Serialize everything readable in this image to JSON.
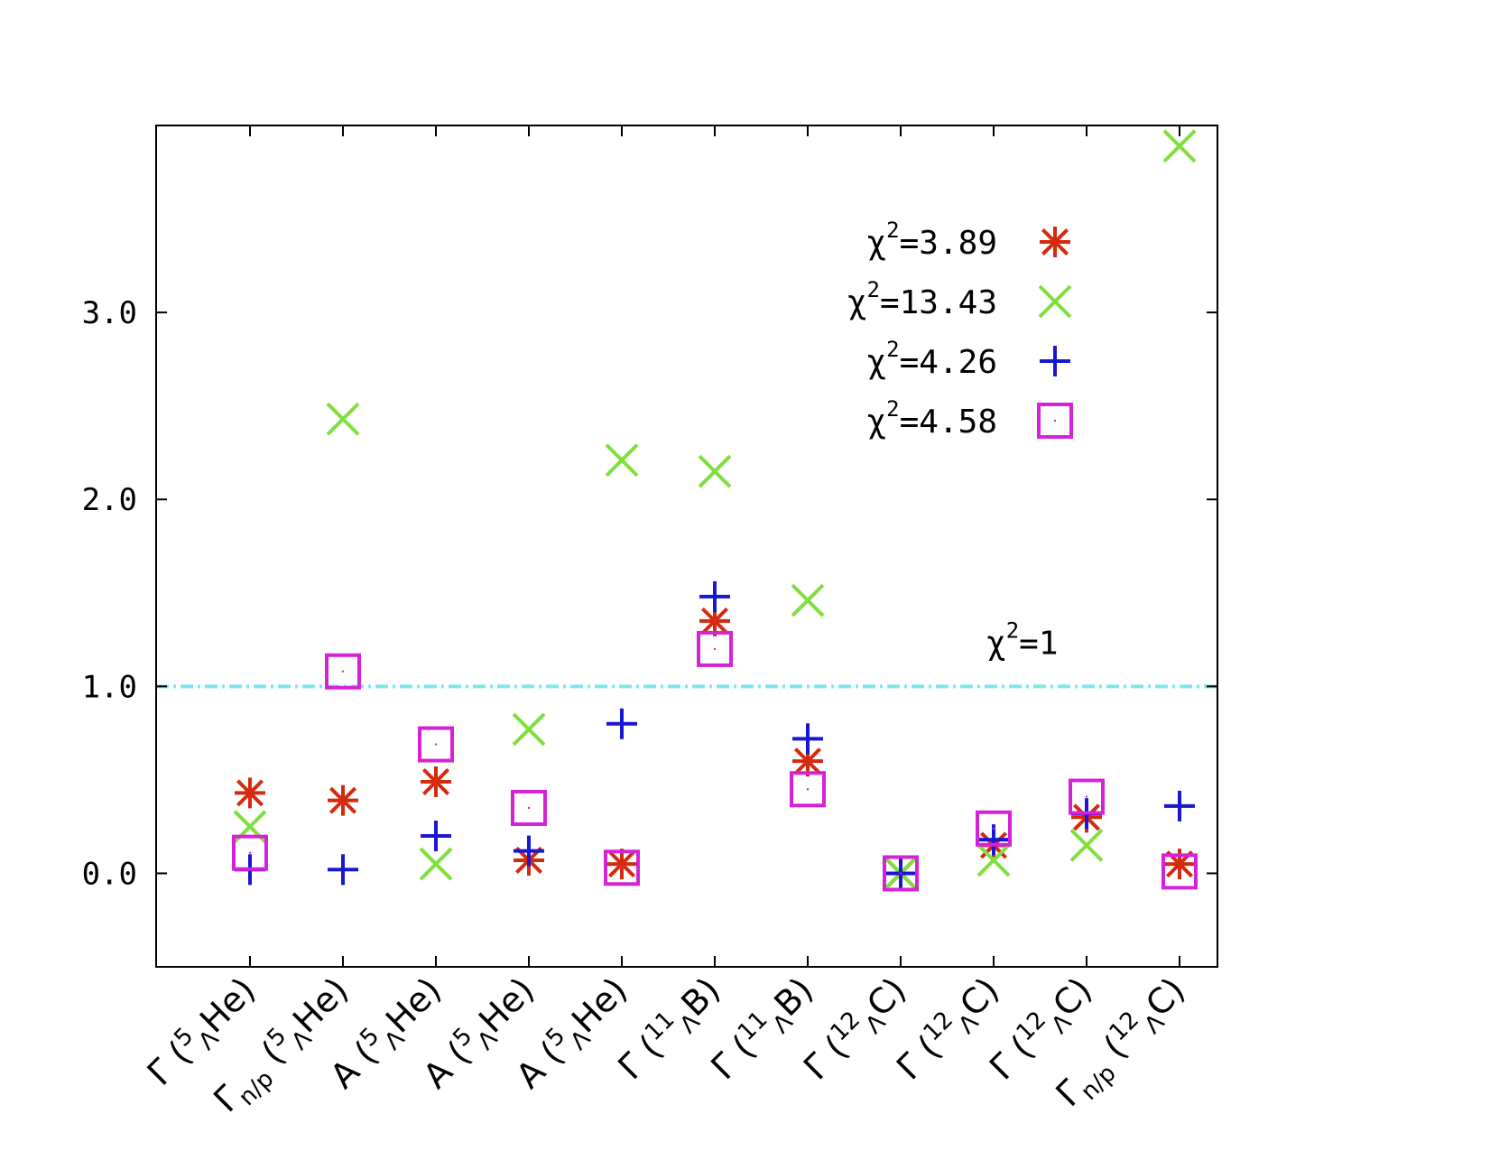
{
  "chart_data": {
    "type": "scatter",
    "title": "",
    "xlabel": "",
    "ylabel": "",
    "ylim": [
      -0.5,
      4.0
    ],
    "yticks": [
      "0.0",
      "1.0",
      "2.0",
      "3.0"
    ],
    "ytick_values": [
      0.0,
      1.0,
      2.0,
      3.0
    ],
    "grid": false,
    "legend_position": "top-right",
    "categories": [
      {
        "symbol": "Γ",
        "sub": "",
        "mass": "5",
        "lambda": "Λ",
        "nucleus": "He"
      },
      {
        "symbol": "Γ",
        "sub": "n/p",
        "mass": "5",
        "lambda": "Λ",
        "nucleus": "He"
      },
      {
        "symbol": "A",
        "sub": "",
        "mass": "5",
        "lambda": "Λ",
        "nucleus": "He"
      },
      {
        "symbol": "A",
        "sub": "",
        "mass": "5",
        "lambda": "Λ",
        "nucleus": "He"
      },
      {
        "symbol": "A",
        "sub": "",
        "mass": "5",
        "lambda": "Λ",
        "nucleus": "He"
      },
      {
        "symbol": "Γ",
        "sub": "",
        "mass": "11",
        "lambda": "Λ",
        "nucleus": "B"
      },
      {
        "symbol": "Γ",
        "sub": "",
        "mass": "11",
        "lambda": "Λ",
        "nucleus": "B"
      },
      {
        "symbol": "Γ",
        "sub": "",
        "mass": "12",
        "lambda": "Λ",
        "nucleus": "C"
      },
      {
        "symbol": "Γ",
        "sub": "",
        "mass": "12",
        "lambda": "Λ",
        "nucleus": "C"
      },
      {
        "symbol": "Γ",
        "sub": "",
        "mass": "12",
        "lambda": "Λ",
        "nucleus": "C"
      },
      {
        "symbol": "Γ",
        "sub": "n/p",
        "mass": "12",
        "lambda": "Λ",
        "nucleus": "C"
      }
    ],
    "series": [
      {
        "name": "χ²=3.89",
        "chi": "χ",
        "sup": "2",
        "value_text": "=3.89",
        "marker": "asterisk",
        "color": "#d42a0e",
        "values": [
          0.43,
          0.39,
          0.49,
          0.07,
          0.05,
          1.35,
          0.6,
          0.0,
          0.15,
          0.3,
          0.05
        ]
      },
      {
        "name": "χ²=13.43",
        "chi": "χ",
        "sup": "2",
        "value_text": "=13.43",
        "marker": "x",
        "color": "#7fe03c",
        "values": [
          0.25,
          2.43,
          0.05,
          0.77,
          2.21,
          2.15,
          1.46,
          0.0,
          0.07,
          0.15,
          3.89
        ]
      },
      {
        "name": "χ²=4.26",
        "chi": "χ",
        "sup": "2",
        "value_text": "=4.26",
        "marker": "plus",
        "color": "#1717d4",
        "values": [
          0.02,
          0.02,
          0.2,
          0.12,
          0.8,
          1.48,
          0.72,
          0.0,
          0.18,
          0.32,
          0.36
        ]
      },
      {
        "name": "χ²=4.58",
        "chi": "χ",
        "sup": "2",
        "value_text": "=4.58",
        "marker": "square",
        "color": "#d622d6",
        "values": [
          0.11,
          1.08,
          0.69,
          0.35,
          0.03,
          1.2,
          0.45,
          0.0,
          0.24,
          0.41,
          0.01
        ]
      }
    ],
    "reference_line": {
      "value": 1.0,
      "color": "#7fe6f0",
      "chi": "χ",
      "sup": "2",
      "label_rest": "=1"
    }
  }
}
